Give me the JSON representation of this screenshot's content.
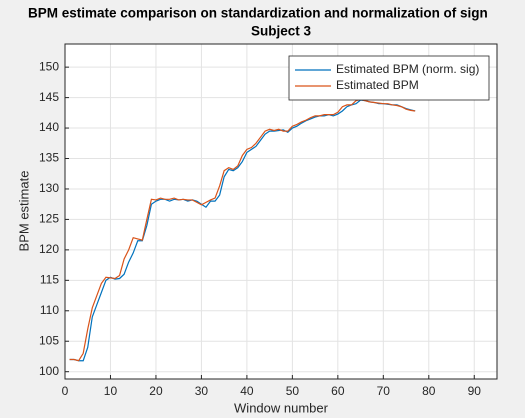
{
  "chart_data": {
    "type": "line",
    "title": "BPM estimate comparison on standardization and normalization of sign",
    "subtitle": "Subject 3",
    "xlabel": "Window number",
    "ylabel": "BPM estimate",
    "x": [
      1,
      2,
      3,
      4,
      5,
      6,
      7,
      8,
      9,
      10,
      11,
      12,
      13,
      14,
      15,
      16,
      17,
      18,
      19,
      20,
      21,
      22,
      23,
      24,
      25,
      26,
      27,
      28,
      29,
      30,
      31,
      32,
      33,
      34,
      35,
      36,
      37,
      38,
      39,
      40,
      41,
      42,
      43,
      44,
      45,
      46,
      47,
      48,
      49,
      50,
      51,
      52,
      53,
      54,
      55,
      56,
      57,
      58,
      59,
      60,
      61,
      62,
      63,
      64,
      65,
      66,
      67,
      68,
      69,
      70,
      71,
      72,
      73,
      74,
      75,
      76,
      77
    ],
    "series": [
      {
        "name": "Estimated BPM (norm. sig)",
        "color": "#0072bd",
        "values": [
          102,
          102,
          101.8,
          101.8,
          104,
          109,
          111,
          113,
          115,
          115.5,
          115.2,
          115.3,
          116,
          118,
          119.5,
          121.5,
          121.5,
          124,
          127.5,
          128,
          128.3,
          128.3,
          128,
          128.3,
          128.2,
          128.3,
          128,
          128.2,
          128,
          127.5,
          127,
          128,
          128,
          129,
          132,
          133.2,
          133,
          133.5,
          134.5,
          136,
          136.5,
          137,
          138,
          139,
          139.5,
          139.5,
          139.6,
          139.7,
          139.3,
          140,
          140.3,
          140.8,
          141.2,
          141.5,
          141.8,
          142,
          142,
          142.2,
          142,
          142.3,
          142.8,
          143.5,
          143.8,
          144,
          144.6,
          144.5,
          144.3,
          144.2,
          144,
          144,
          143.9,
          143.8,
          143.8,
          143.5,
          143.2,
          143,
          142.8
        ]
      },
      {
        "name": "Estimated BPM",
        "color": "#d95319",
        "values": [
          102,
          102,
          101.8,
          103,
          107,
          110.5,
          112.5,
          114.5,
          115.5,
          115.4,
          115.3,
          115.8,
          118.5,
          120,
          122,
          121.8,
          121.6,
          125,
          128.3,
          128.2,
          128.5,
          128.3,
          128.3,
          128.5,
          128.2,
          128.3,
          128.2,
          128.2,
          127.8,
          127.4,
          127.8,
          128.2,
          128.5,
          130.5,
          133,
          133.5,
          133.2,
          133.8,
          135.5,
          136.5,
          136.8,
          137.5,
          138.5,
          139.5,
          139.8,
          139.6,
          139.8,
          139.5,
          139.5,
          140.3,
          140.6,
          141,
          141.3,
          141.7,
          142,
          142,
          142.2,
          142.2,
          142.2,
          142.6,
          143.5,
          143.8,
          143.8,
          144.5,
          144.7,
          144.5,
          144.3,
          144.2,
          144.1,
          144,
          144,
          143.8,
          143.7,
          143.5,
          143.1,
          142.9,
          142.8
        ]
      }
    ],
    "xlim": [
      0,
      95
    ],
    "xticks": [
      0,
      10,
      20,
      30,
      40,
      50,
      60,
      70,
      80,
      90
    ],
    "ylim": [
      98.8,
      153.8
    ],
    "yticks": [
      100,
      105,
      110,
      115,
      120,
      125,
      130,
      135,
      140,
      145,
      150
    ],
    "grid": true,
    "legend": "northeast"
  }
}
